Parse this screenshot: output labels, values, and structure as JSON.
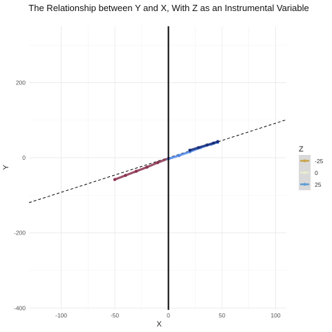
{
  "chart_data": {
    "type": "scatter",
    "title": "The Relationship between Y and X, With Z as an Instrumental Variable",
    "xlabel": "X",
    "ylabel": "Y",
    "xlim": [
      -130,
      110
    ],
    "ylim": [
      -405,
      350
    ],
    "x_ticks": [
      -100,
      -50,
      0,
      50,
      100
    ],
    "x_tick_labels": [
      "-100",
      "-50",
      "0",
      "50",
      "100"
    ],
    "y_ticks": [
      -400,
      -200,
      0,
      200
    ],
    "y_tick_labels": [
      "-400",
      "-200",
      "0",
      "200"
    ],
    "grid": true,
    "legend": {
      "title": "Z",
      "position": "right",
      "entries": [
        {
          "label": "-25",
          "color": "#c9a24a"
        },
        {
          "label": "0",
          "color": "#e8ecd0"
        },
        {
          "label": "25",
          "color": "#5b9bd5"
        }
      ]
    },
    "vertical_line": {
      "x": 0,
      "color": "#000000"
    },
    "reference_line": {
      "slope": 0.92,
      "intercept": 0,
      "style": "dashed",
      "color": "#000000"
    },
    "series": [
      {
        "color": "#8a3050",
        "x": [
          -50,
          -40,
          -30,
          -20,
          -10,
          0
        ],
        "y": [
          -58,
          -47,
          -36,
          -25,
          -13,
          -2
        ]
      },
      {
        "color": "#4f86e8",
        "x": [
          0,
          10,
          20,
          30,
          40,
          46
        ],
        "y": [
          -3,
          6,
          16,
          27,
          36,
          41
        ]
      },
      {
        "color": "#1a2f7a",
        "x": [
          20,
          28,
          36,
          42,
          46
        ],
        "y": [
          20,
          27,
          34,
          39,
          43
        ]
      }
    ]
  }
}
